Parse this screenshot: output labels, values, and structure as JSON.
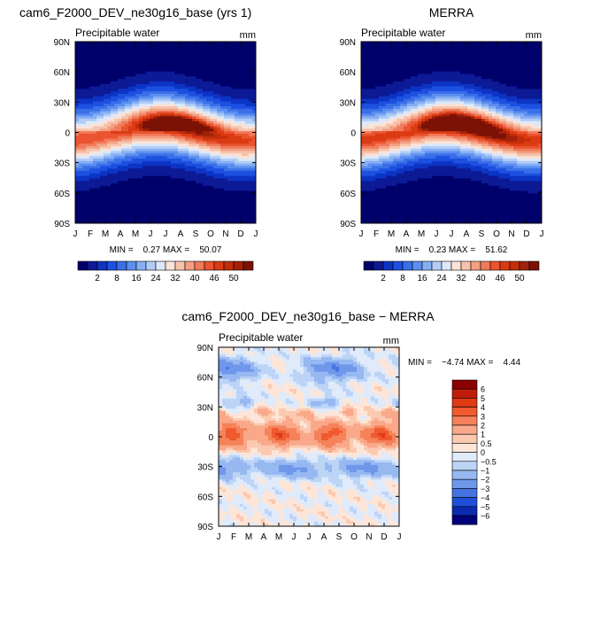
{
  "chart_data": [
    {
      "type": "heatmap",
      "title": "cam6_F2000_DEV_ne30g16_base (yrs 1)",
      "subtitle": "Precipitable water",
      "units": "mm",
      "x_ticks": [
        "J",
        "F",
        "M",
        "A",
        "M",
        "J",
        "J",
        "A",
        "S",
        "O",
        "N",
        "D",
        "J"
      ],
      "y_ticks": [
        "90N",
        "60N",
        "30N",
        "0",
        "30S",
        "60S",
        "90S"
      ],
      "stats_text": "MIN =    0.27 MAX =    50.07",
      "min": 0.27,
      "max": 50.07,
      "colorbar": {
        "orientation": "horizontal",
        "labels": [
          "2",
          "8",
          "16",
          "24",
          "32",
          "40",
          "46",
          "50"
        ],
        "colors": [
          "#00006b",
          "#0c1a96",
          "#0d34c4",
          "#1d50e0",
          "#3a6fe8",
          "#5c8ef0",
          "#86aff4",
          "#b1cdf7",
          "#dce8fb",
          "#fbe3d6",
          "#f7c3ab",
          "#f4a083",
          "#f07a5a",
          "#ea5430",
          "#db3b13",
          "#c22d0a",
          "#a2210a",
          "#7c1206"
        ]
      }
    },
    {
      "type": "heatmap",
      "title": "MERRA",
      "subtitle": "Precipitable water",
      "units": "mm",
      "x_ticks": [
        "J",
        "F",
        "M",
        "A",
        "M",
        "J",
        "J",
        "A",
        "S",
        "O",
        "N",
        "D",
        "J"
      ],
      "y_ticks": [
        "90N",
        "60N",
        "30N",
        "0",
        "30S",
        "60S",
        "90S"
      ],
      "stats_text": "MIN =    0.23 MAX =    51.62",
      "min": 0.23,
      "max": 51.62,
      "colorbar": {
        "orientation": "horizontal",
        "labels": [
          "2",
          "8",
          "16",
          "24",
          "32",
          "40",
          "46",
          "50"
        ],
        "colors": [
          "#00006b",
          "#0c1a96",
          "#0d34c4",
          "#1d50e0",
          "#3a6fe8",
          "#5c8ef0",
          "#86aff4",
          "#b1cdf7",
          "#dce8fb",
          "#fbe3d6",
          "#f7c3ab",
          "#f4a083",
          "#f07a5a",
          "#ea5430",
          "#db3b13",
          "#c22d0a",
          "#a2210a",
          "#7c1206"
        ]
      }
    },
    {
      "type": "heatmap",
      "title": "cam6_F2000_DEV_ne30g16_base − MERRA",
      "subtitle": "Precipitable water",
      "units": "mm",
      "x_ticks": [
        "J",
        "F",
        "M",
        "A",
        "M",
        "J",
        "J",
        "A",
        "S",
        "O",
        "N",
        "D",
        "J"
      ],
      "y_ticks": [
        "90N",
        "60N",
        "30N",
        "0",
        "30S",
        "60S",
        "90S"
      ],
      "stats_text": "MIN =    −4.74 MAX =    4.44",
      "min": -4.74,
      "max": 4.44,
      "colorbar": {
        "orientation": "vertical",
        "labels": [
          "6",
          "5",
          "4",
          "3",
          "2",
          "1",
          "0.5",
          "0",
          "−0.5",
          "−1",
          "−2",
          "−3",
          "−4",
          "−5",
          "−6"
        ],
        "colors": [
          "#8b0000",
          "#bf1c0a",
          "#de3a14",
          "#ef5a2f",
          "#f5825a",
          "#f9a889",
          "#fbc9b0",
          "#fde6d8",
          "#dfeafb",
          "#bcd4f6",
          "#97b8f1",
          "#6f97ea",
          "#4574e2",
          "#1f4fd6",
          "#0a2ab0",
          "#00007a"
        ]
      }
    }
  ]
}
